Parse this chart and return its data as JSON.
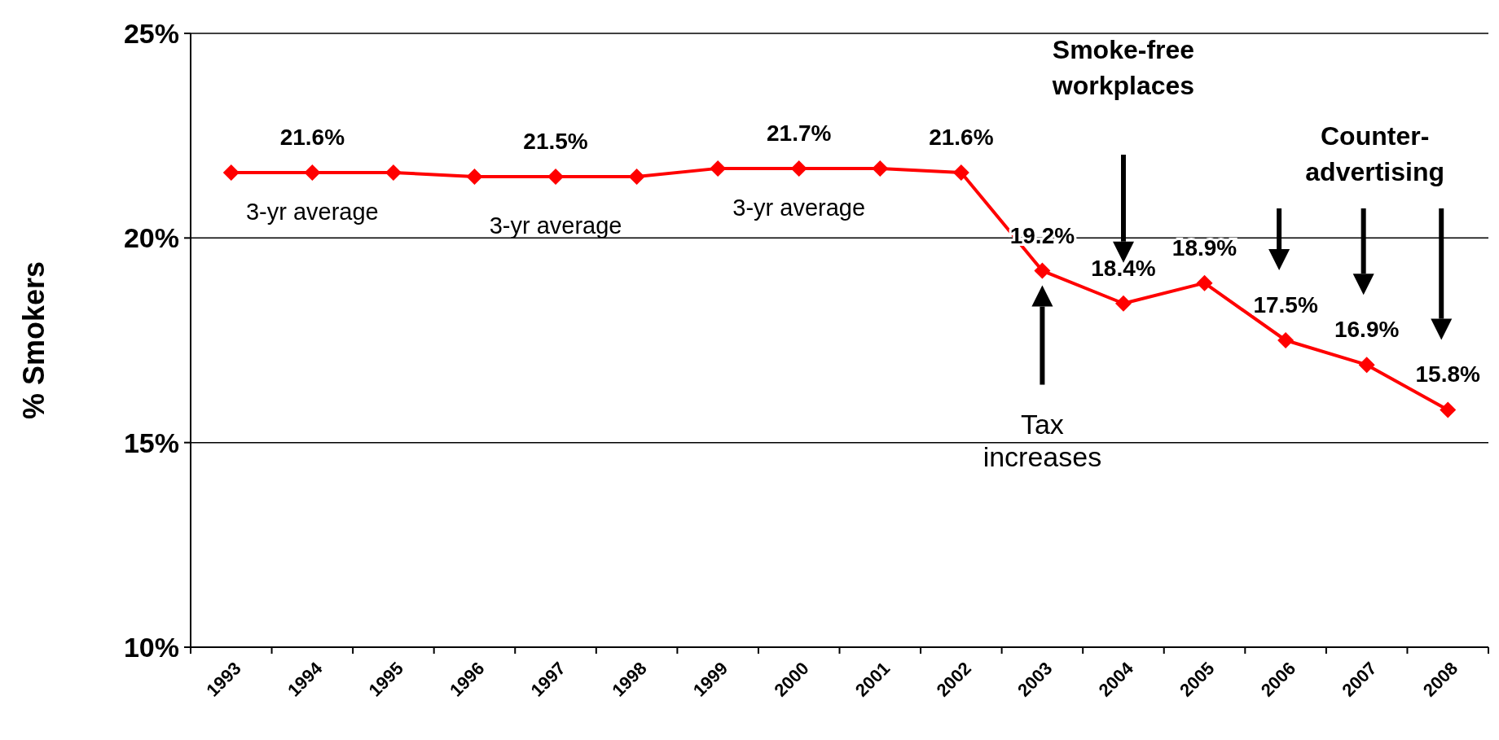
{
  "chart_data": {
    "type": "line",
    "ylabel": "% Smokers",
    "categories": [
      "1993",
      "1994",
      "1995",
      "1996",
      "1997",
      "1998",
      "1999",
      "2000",
      "2001",
      "2002",
      "2003",
      "2004",
      "2005",
      "2006",
      "2007",
      "2008"
    ],
    "series": [
      {
        "color": "#ff0000",
        "values": [
          21.6,
          21.6,
          21.6,
          21.5,
          21.5,
          21.5,
          21.7,
          21.7,
          21.7,
          21.6,
          19.2,
          18.4,
          18.9,
          17.5,
          16.9,
          15.8
        ],
        "value_labels": [
          null,
          "21.6%",
          null,
          null,
          "21.5%",
          null,
          null,
          "21.7%",
          null,
          "21.6%",
          "19.2%",
          "18.4%",
          "18.9%",
          "17.5%",
          "16.9%",
          "15.8%"
        ]
      }
    ],
    "ylim": [
      10,
      25
    ],
    "yticks": [
      {
        "value": 10,
        "label": "10%"
      },
      {
        "value": 15,
        "label": "15%"
      },
      {
        "value": 20,
        "label": "20%"
      },
      {
        "value": 25,
        "label": "25%"
      }
    ],
    "grid": "y",
    "marker": "diamond",
    "line_style": "solid",
    "annotations": [
      {
        "text": "3-yr average",
        "x": "1994",
        "y": 21.6
      },
      {
        "text": "3-yr average",
        "x": "1997",
        "y": 21.5
      },
      {
        "text": "3-yr average",
        "x": "2000",
        "y": 21.7
      },
      "Tax increases",
      "Smoke-free workplaces",
      "Counter-advertising"
    ]
  }
}
